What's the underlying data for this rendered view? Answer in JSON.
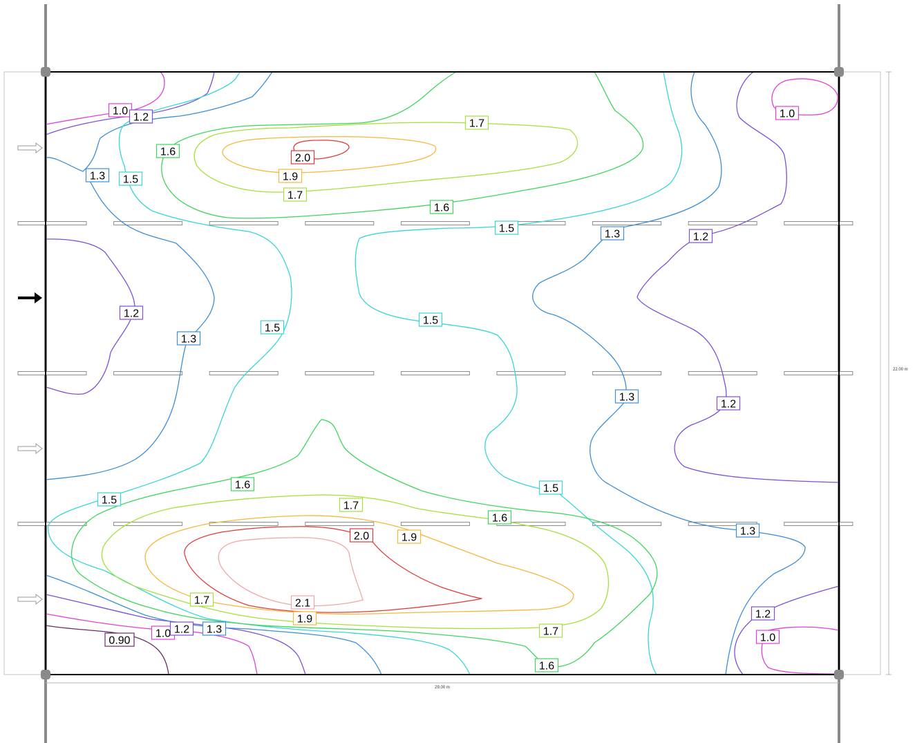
{
  "diagram": {
    "type": "isolux-contour-plan",
    "dimensions": {
      "width_label": "29.00 m",
      "height_label": "22.00 m"
    },
    "colors": {
      "frame": "#000000",
      "pole": "#8a8a8a",
      "luminaire_fill": "#ffffff",
      "luminaire_stroke": "#8c8c8c",
      "arrow_main": "#000000",
      "arrow_outline": "#9a9a9a",
      "dimension_line": "#b5b5b5"
    },
    "levels": [
      {
        "id": "l090",
        "value": "0.90",
        "color": "#6b2d6b"
      },
      {
        "id": "l10",
        "value": "1.0",
        "color": "#e040d8"
      },
      {
        "id": "l12",
        "value": "1.2",
        "color": "#7d4fd6"
      },
      {
        "id": "l13",
        "value": "1.3",
        "color": "#3b8fd8"
      },
      {
        "id": "l15",
        "value": "1.5",
        "color": "#36d6d6"
      },
      {
        "id": "l16",
        "value": "1.6",
        "color": "#3ed65a"
      },
      {
        "id": "l17",
        "value": "1.7",
        "color": "#a6e03a"
      },
      {
        "id": "l19",
        "value": "1.9",
        "color": "#f5b83a"
      },
      {
        "id": "l20",
        "value": "2.0",
        "color": "#e23a3a"
      },
      {
        "id": "l21",
        "value": "2.1",
        "color": "#f0a6a6"
      }
    ],
    "labels": [
      {
        "text": "1.0",
        "level": "l10"
      },
      {
        "text": "1.2",
        "level": "l12"
      },
      {
        "text": "1.7",
        "level": "l17"
      },
      {
        "text": "1.0",
        "level": "l10"
      },
      {
        "text": "1.6",
        "level": "l16"
      },
      {
        "text": "2.0",
        "level": "l20"
      },
      {
        "text": "1.3",
        "level": "l13"
      },
      {
        "text": "1.5",
        "level": "l15"
      },
      {
        "text": "1.9",
        "level": "l19"
      },
      {
        "text": "1.7",
        "level": "l17"
      },
      {
        "text": "1.6",
        "level": "l16"
      },
      {
        "text": "1.5",
        "level": "l15"
      },
      {
        "text": "1.3",
        "level": "l13"
      },
      {
        "text": "1.2",
        "level": "l12"
      },
      {
        "text": "1.2",
        "level": "l12"
      },
      {
        "text": "1.5",
        "level": "l15"
      },
      {
        "text": "1.5",
        "level": "l15"
      },
      {
        "text": "1.3",
        "level": "l13"
      },
      {
        "text": "1.3",
        "level": "l13"
      },
      {
        "text": "1.2",
        "level": "l12"
      },
      {
        "text": "1.6",
        "level": "l16"
      },
      {
        "text": "1.5",
        "level": "l15"
      },
      {
        "text": "1.5",
        "level": "l15"
      },
      {
        "text": "1.7",
        "level": "l17"
      },
      {
        "text": "1.6",
        "level": "l16"
      },
      {
        "text": "2.0",
        "level": "l20"
      },
      {
        "text": "1.9",
        "level": "l19"
      },
      {
        "text": "1.3",
        "level": "l13"
      },
      {
        "text": "1.7",
        "level": "l17"
      },
      {
        "text": "2.1",
        "level": "l21"
      },
      {
        "text": "1.9",
        "level": "l19"
      },
      {
        "text": "1.2",
        "level": "l12"
      },
      {
        "text": "0.90",
        "level": "l090"
      },
      {
        "text": "1.0",
        "level": "l10"
      },
      {
        "text": "1.2",
        "level": "l12"
      },
      {
        "text": "1.3",
        "level": "l13"
      },
      {
        "text": "1.7",
        "level": "l17"
      },
      {
        "text": "1.0",
        "level": "l10"
      },
      {
        "text": "1.6",
        "level": "l16"
      }
    ]
  }
}
